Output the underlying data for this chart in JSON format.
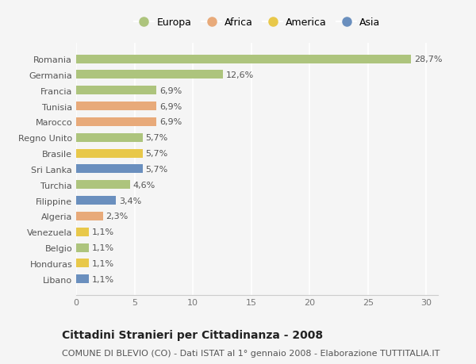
{
  "countries": [
    "Romania",
    "Germania",
    "Francia",
    "Tunisia",
    "Marocco",
    "Regno Unito",
    "Brasile",
    "Sri Lanka",
    "Turchia",
    "Filippine",
    "Algeria",
    "Venezuela",
    "Belgio",
    "Honduras",
    "Libano"
  ],
  "values": [
    28.7,
    12.6,
    6.9,
    6.9,
    6.9,
    5.7,
    5.7,
    5.7,
    4.6,
    3.4,
    2.3,
    1.1,
    1.1,
    1.1,
    1.1
  ],
  "labels": [
    "28,7%",
    "12,6%",
    "6,9%",
    "6,9%",
    "6,9%",
    "5,7%",
    "5,7%",
    "5,7%",
    "4,6%",
    "3,4%",
    "2,3%",
    "1,1%",
    "1,1%",
    "1,1%",
    "1,1%"
  ],
  "continents": [
    "Europa",
    "Europa",
    "Europa",
    "Africa",
    "Africa",
    "Europa",
    "America",
    "Asia",
    "Europa",
    "Asia",
    "Africa",
    "America",
    "Europa",
    "America",
    "Asia"
  ],
  "colors": {
    "Europa": "#adc47d",
    "Africa": "#e8aa7a",
    "America": "#e8c84a",
    "Asia": "#6a8fbe"
  },
  "legend_order": [
    "Europa",
    "Africa",
    "America",
    "Asia"
  ],
  "xlim": [
    0,
    31
  ],
  "xticks": [
    0,
    5,
    10,
    15,
    20,
    25,
    30
  ],
  "title": "Cittadini Stranieri per Cittadinanza - 2008",
  "subtitle": "COMUNE DI BLEVIO (CO) - Dati ISTAT al 1° gennaio 2008 - Elaborazione TUTTITALIA.IT",
  "bg_color": "#f5f5f5",
  "title_fontsize": 10,
  "subtitle_fontsize": 8,
  "label_fontsize": 8,
  "tick_fontsize": 8,
  "legend_fontsize": 9
}
